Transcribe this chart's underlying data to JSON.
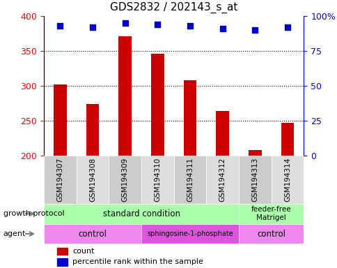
{
  "title": "GDS2832 / 202143_s_at",
  "samples": [
    "GSM194307",
    "GSM194308",
    "GSM194309",
    "GSM194310",
    "GSM194311",
    "GSM194312",
    "GSM194313",
    "GSM194314"
  ],
  "counts": [
    302,
    274,
    371,
    346,
    308,
    264,
    208,
    247
  ],
  "percentile_ranks": [
    93,
    92,
    95,
    94,
    93,
    91,
    90,
    92
  ],
  "y_min": 200,
  "y_max": 400,
  "y_ticks": [
    200,
    250,
    300,
    350,
    400
  ],
  "y2_ticks": [
    0,
    25,
    50,
    75,
    100
  ],
  "bar_color": "#cc0000",
  "dot_color": "#0000cc",
  "growth_protocol_groups": [
    {
      "label": "standard condition",
      "start": 0,
      "end": 6,
      "color": "#aaffaa"
    },
    {
      "label": "feeder-free\nMatrigel",
      "start": 6,
      "end": 8,
      "color": "#aaffaa"
    }
  ],
  "agent_groups": [
    {
      "label": "control",
      "start": 0,
      "end": 3,
      "color": "#ee88ee"
    },
    {
      "label": "sphingosine-1-phosphate",
      "start": 3,
      "end": 6,
      "color": "#dd55dd"
    },
    {
      "label": "control",
      "start": 6,
      "end": 8,
      "color": "#ee88ee"
    }
  ],
  "growth_label": "growth protocol",
  "agent_label": "agent",
  "legend_count": "count",
  "legend_pct": "percentile rank within the sample",
  "grid_color": "#000000",
  "grid_style": "dotted"
}
